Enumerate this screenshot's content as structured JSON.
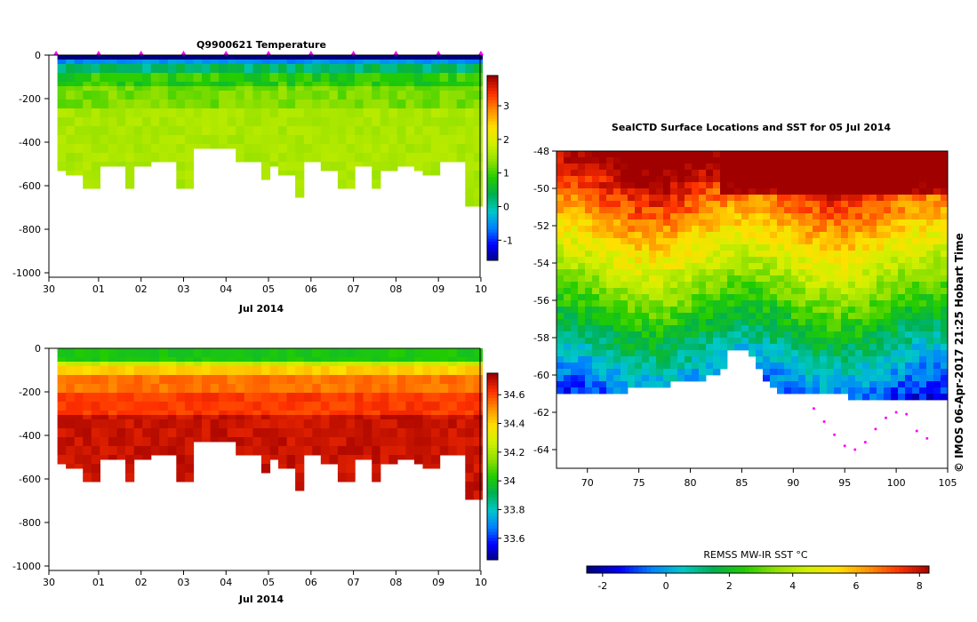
{
  "chart_data": [
    {
      "type": "heatmap",
      "title": "Q9900621  Temperature",
      "xlabel": "Jul 2014",
      "ylabel": "",
      "x_ticks": [
        "30",
        "01",
        "02",
        "03",
        "04",
        "05",
        "06",
        "07",
        "08",
        "09",
        "10"
      ],
      "y_ticks": [
        "0",
        "-200",
        "-400",
        "-600",
        "-800",
        "-1000"
      ],
      "ylim": [
        -1000,
        0
      ],
      "colorbar_ticks": [
        "3",
        "2",
        "1",
        "0",
        "-1"
      ],
      "colorbar_range": [
        -1.6,
        3.9
      ],
      "profile_days": [
        0.15,
        0.35,
        0.55,
        0.75,
        0.95,
        1.15,
        1.35,
        1.55,
        1.75,
        1.95,
        2.15,
        2.35,
        2.55,
        2.75,
        2.95,
        3.15,
        3.35,
        3.55,
        3.75,
        3.95,
        4.15,
        4.35,
        4.55,
        4.75,
        4.95,
        5.15,
        5.35,
        5.55,
        5.75,
        5.95,
        6.15,
        6.35,
        6.55,
        6.75,
        6.95,
        7.15,
        7.35,
        7.55,
        7.75,
        7.95,
        8.15,
        8.35,
        8.55,
        8.75,
        8.95,
        9.15,
        9.35,
        9.55,
        9.75,
        9.95
      ],
      "max_depths": [
        505,
        530,
        530,
        600,
        600,
        490,
        490,
        490,
        600,
        500,
        500,
        475,
        475,
        475,
        600,
        600,
        420,
        420,
        420,
        420,
        420,
        475,
        475,
        475,
        555,
        500,
        530,
        530,
        635,
        475,
        475,
        515,
        515,
        600,
        600,
        500,
        500,
        585,
        510,
        510,
        495,
        495,
        510,
        525,
        525,
        480,
        480,
        480,
        680,
        680
      ],
      "surface_marker_days": [
        0,
        1,
        2,
        3,
        4,
        5,
        6,
        7,
        8,
        9,
        10
      ],
      "colorscale": [
        "#00007f",
        "#0000ff",
        "#0080ff",
        "#00c8c8",
        "#00b050",
        "#22cc00",
        "#90e000",
        "#d0f000",
        "#ffe000",
        "#ff9000",
        "#ff3000",
        "#a00000"
      ]
    },
    {
      "type": "heatmap",
      "title": "",
      "xlabel": "Jul 2014",
      "ylabel": "",
      "x_ticks": [
        "30",
        "01",
        "02",
        "03",
        "04",
        "05",
        "06",
        "07",
        "08",
        "09",
        "10"
      ],
      "y_ticks": [
        "0",
        "-200",
        "-400",
        "-600",
        "-800",
        "-1000"
      ],
      "ylim": [
        -1000,
        0
      ],
      "colorbar_ticks": [
        "34.6",
        "34.4",
        "34.2",
        "34",
        "33.8",
        "33.6"
      ],
      "colorbar_range": [
        33.45,
        34.75
      ]
    },
    {
      "type": "heatmap",
      "title": "SealCTD Surface Locations and SST for 05 Jul 2014",
      "xlabel": "",
      "ylabel": "",
      "x_ticks": [
        "70",
        "75",
        "80",
        "85",
        "90",
        "95",
        "100",
        "105"
      ],
      "y_ticks": [
        "-48",
        "-50",
        "-52",
        "-54",
        "-56",
        "-58",
        "-60",
        "-62",
        "-64"
      ],
      "xlim": [
        67,
        105
      ],
      "ylim": [
        -65,
        -48
      ],
      "colorbar_label": "REMSS MW-IR SST °C",
      "colorbar_ticks": [
        "-2",
        "0",
        "2",
        "4",
        "6",
        "8"
      ],
      "colorbar_range": [
        -2.5,
        8.3
      ],
      "credit": "© IMOS 06-Apr-2017 21:25 Hobart Time",
      "track_points": [
        [
          92,
          -61.8
        ],
        [
          93,
          -62.5
        ],
        [
          94,
          -63.2
        ],
        [
          95,
          -63.8
        ],
        [
          96,
          -64.0
        ],
        [
          97,
          -63.6
        ],
        [
          98,
          -62.9
        ],
        [
          99,
          -62.3
        ],
        [
          100,
          -62.0
        ],
        [
          101,
          -62.1
        ],
        [
          102,
          -63.0
        ],
        [
          103,
          -63.4
        ]
      ],
      "ice_boundary": [
        [
          67,
          -61
        ],
        [
          72,
          -61
        ],
        [
          78,
          -60.5
        ],
        [
          83,
          -60
        ],
        [
          84,
          -58.4
        ],
        [
          86,
          -59
        ],
        [
          88,
          -60.8
        ],
        [
          92,
          -61
        ],
        [
          96,
          -61.2
        ],
        [
          100,
          -61.5
        ],
        [
          104,
          -61.3
        ],
        [
          105,
          -61.2
        ]
      ]
    }
  ]
}
